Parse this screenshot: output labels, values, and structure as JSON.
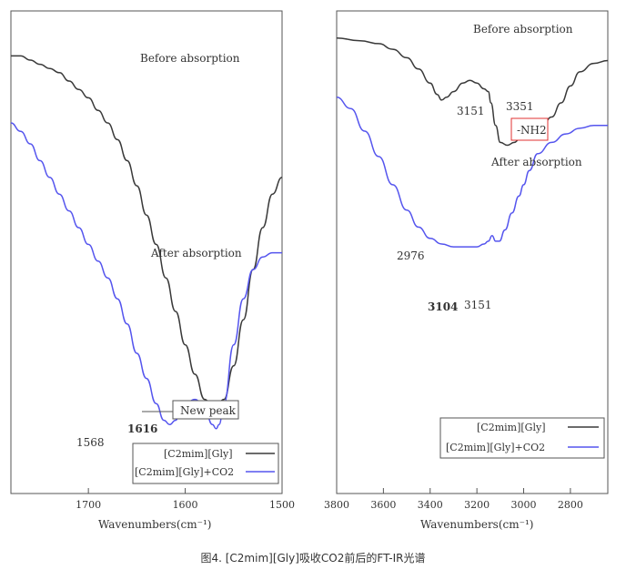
{
  "caption": "图4. [C2mim][Gly]吸收CO2前后的FT-IR光谱",
  "colors": {
    "before": "#3a3a3a",
    "after": "#5555ee",
    "annotation_purple": "#8a3ad6",
    "nh2_box": "#e03030",
    "frame": "#555555"
  },
  "chart_data": [
    {
      "type": "line",
      "panel": "left",
      "xlabel": "Wavenumbers(cm⁻¹)",
      "xlim": [
        1500,
        1780
      ],
      "x_ticks": [
        1500,
        1600,
        1700
      ],
      "x_tick_labels": [
        "1500",
        "1600",
        "1700"
      ],
      "annotations": {
        "before": "Before absorption",
        "after": "After absorption",
        "new_peak": "New peak",
        "peak_1616": "1616",
        "peak_1568": "1568"
      },
      "legend": {
        "placement": "bottom-right",
        "entries": [
          "[C2mim][Gly]",
          "[C2mim][Gly]+CO2"
        ]
      },
      "series": [
        {
          "name": "[C2mim][Gly]",
          "x": [
            1500,
            1510,
            1520,
            1530,
            1540,
            1550,
            1560,
            1570,
            1580,
            1590,
            1600,
            1610,
            1620,
            1630,
            1640,
            1650,
            1660,
            1670,
            1680,
            1690,
            1700,
            1710,
            1720,
            1730,
            1740,
            1750,
            1760,
            1770,
            1780
          ],
          "y": [
            62,
            58,
            50,
            40,
            28,
            17,
            9,
            6,
            9,
            15,
            22,
            30,
            38,
            46,
            53,
            60,
            66,
            71,
            75,
            78,
            81,
            83,
            85,
            87,
            88,
            89,
            90,
            91,
            91
          ]
        },
        {
          "name": "[C2mim][Gly]+CO2",
          "x": [
            1500,
            1510,
            1520,
            1530,
            1540,
            1550,
            1560,
            1565,
            1568,
            1572,
            1580,
            1590,
            1600,
            1605,
            1610,
            1616,
            1622,
            1630,
            1640,
            1650,
            1660,
            1670,
            1680,
            1690,
            1700,
            1710,
            1720,
            1730,
            1740,
            1750,
            1760,
            1770,
            1780
          ],
          "y": [
            44,
            44,
            43,
            40,
            33,
            22,
            8,
            3,
            2,
            3,
            7,
            9,
            8,
            6,
            4,
            3,
            4,
            8,
            14,
            20,
            27,
            33,
            38,
            42,
            46,
            50,
            54,
            58,
            62,
            66,
            70,
            73,
            75
          ]
        }
      ]
    },
    {
      "type": "line",
      "panel": "right",
      "xlabel": "Wavenumbers(cm⁻¹)",
      "xlim": [
        2640,
        3800
      ],
      "x_ticks": [
        2800,
        3000,
        3200,
        3400,
        3600,
        3800
      ],
      "x_tick_labels": [
        "2800",
        "3000",
        "3200",
        "3400",
        "3600",
        "3800"
      ],
      "annotations": {
        "before": "Before absorption",
        "after": "After absorption",
        "nh2": "-NH2",
        "peak_3351": "3351",
        "peak_3151_before": "3151",
        "peak_2976": "2976",
        "peak_3151_after": "3151",
        "peak_3104": "3104"
      },
      "legend": {
        "placement": "bottom-right",
        "entries": [
          "[C2mim][Gly]",
          "[C2mim][Gly]+CO2"
        ]
      },
      "series": [
        {
          "name": "[C2mim][Gly]",
          "x": [
            2640,
            2700,
            2760,
            2800,
            2840,
            2880,
            2920,
            2960,
            2980,
            3000,
            3020,
            3040,
            3070,
            3100,
            3120,
            3140,
            3151,
            3170,
            3200,
            3230,
            3260,
            3300,
            3330,
            3351,
            3370,
            3400,
            3450,
            3500,
            3560,
            3620,
            3700,
            3800
          ],
          "y": [
            85,
            84,
            81,
            76,
            70,
            65,
            62,
            60,
            57,
            58,
            57,
            56,
            55,
            56,
            62,
            70,
            74,
            75,
            77,
            78,
            77,
            74,
            72,
            71,
            73,
            77,
            82,
            86,
            89,
            91,
            92,
            93
          ]
        },
        {
          "name": "[C2mim][Gly]+CO2",
          "x": [
            2640,
            2700,
            2760,
            2820,
            2880,
            2940,
            2976,
            3000,
            3020,
            3050,
            3080,
            3104,
            3120,
            3135,
            3151,
            3170,
            3200,
            3250,
            3300,
            3350,
            3400,
            3450,
            3500,
            3560,
            3620,
            3680,
            3740,
            3800
          ],
          "y": [
            62,
            62,
            61,
            59,
            56,
            52,
            46,
            41,
            37,
            31,
            25,
            21,
            21,
            23,
            21,
            20,
            19,
            19,
            19,
            20,
            22,
            26,
            32,
            41,
            51,
            60,
            68,
            72
          ]
        }
      ]
    }
  ]
}
